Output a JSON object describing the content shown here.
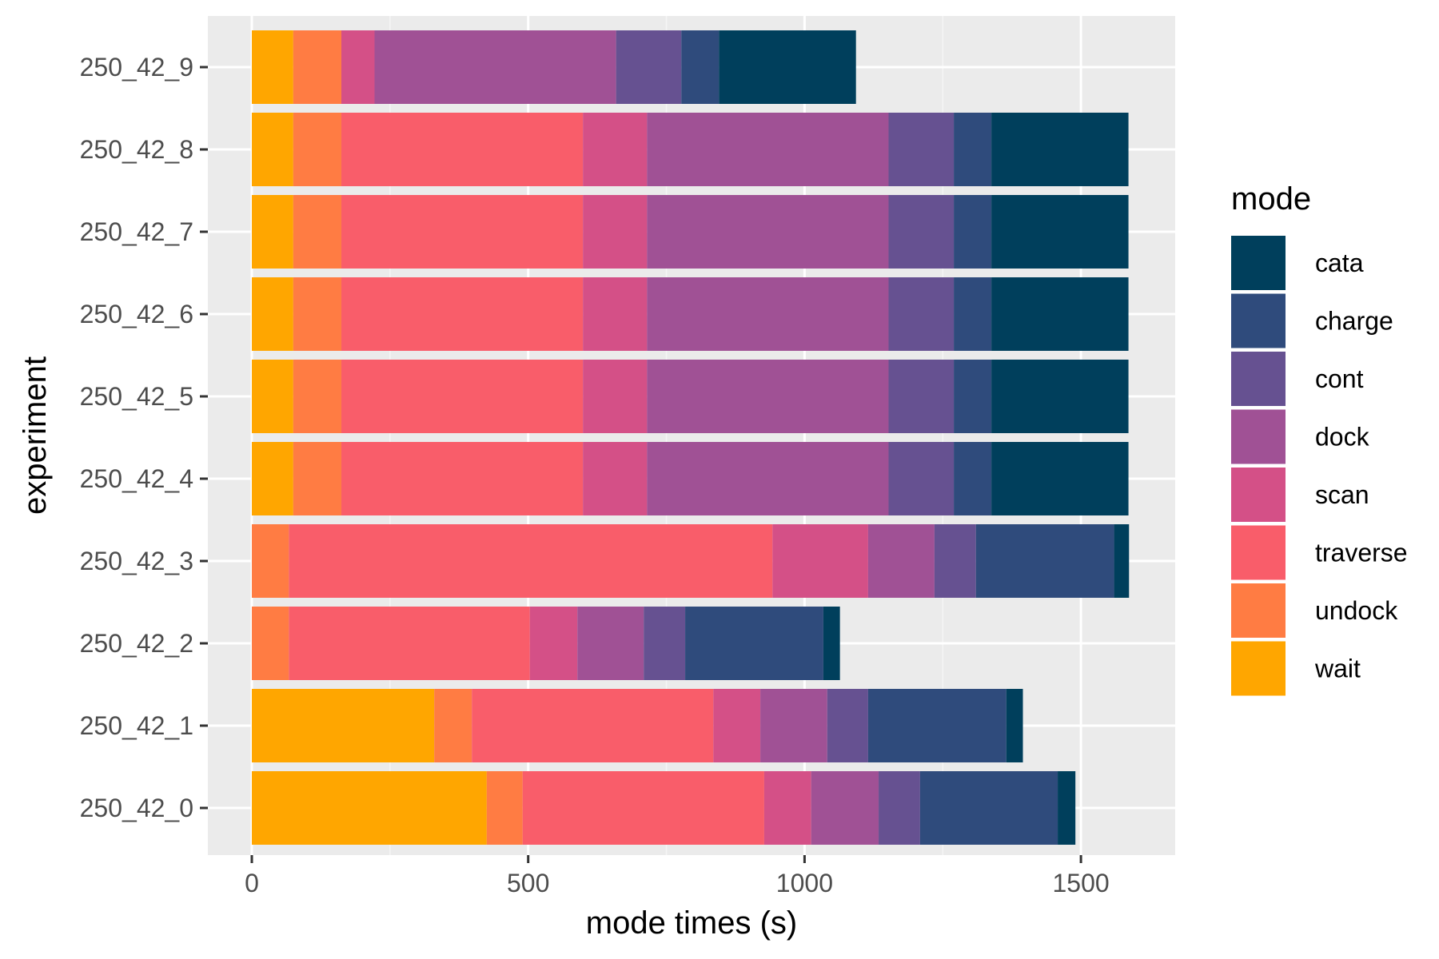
{
  "chart_data": {
    "type": "bar",
    "orientation": "horizontal",
    "stacked": true,
    "title": "",
    "xlabel": "mode times (s)",
    "ylabel": "experiment",
    "xlim": [
      0,
      1600
    ],
    "x_ticks": [
      "0",
      "500",
      "1000",
      "1500"
    ],
    "x_tick_values": [
      0,
      500,
      1000,
      1500
    ],
    "grid": true,
    "legend": {
      "title": "mode",
      "placement": "right",
      "entries": [
        "cata",
        "charge",
        "cont",
        "dock",
        "scan",
        "traverse",
        "undock",
        "wait"
      ]
    },
    "categories": [
      "250_42_0",
      "250_42_1",
      "250_42_2",
      "250_42_3",
      "250_42_4",
      "250_42_5",
      "250_42_6",
      "250_42_7",
      "250_42_8",
      "250_42_9"
    ],
    "stack_order": [
      "wait",
      "undock",
      "traverse",
      "scan",
      "dock",
      "cont",
      "charge",
      "cata"
    ],
    "series": [
      {
        "name": "wait",
        "color": "#FFA600",
        "values": [
          425,
          330,
          0,
          0,
          75,
          75,
          75,
          75,
          75,
          75
        ]
      },
      {
        "name": "undock",
        "color": "#FF7C43",
        "values": [
          65,
          68,
          67,
          67,
          87,
          87,
          87,
          87,
          87,
          87
        ]
      },
      {
        "name": "traverse",
        "color": "#F95D6A",
        "values": [
          437,
          437,
          436,
          875,
          437,
          437,
          437,
          437,
          437,
          0
        ]
      },
      {
        "name": "scan",
        "color": "#D45087",
        "values": [
          85,
          85,
          86,
          173,
          116,
          116,
          116,
          116,
          116,
          60
        ]
      },
      {
        "name": "dock",
        "color": "#A05195",
        "values": [
          122,
          121,
          120,
          120,
          437,
          437,
          437,
          437,
          437,
          437
        ]
      },
      {
        "name": "cont",
        "color": "#665191",
        "values": [
          75,
          74,
          75,
          75,
          118,
          118,
          118,
          118,
          118,
          118
        ]
      },
      {
        "name": "charge",
        "color": "#2F4B7C",
        "values": [
          249,
          250,
          250,
          250,
          68,
          68,
          68,
          68,
          68,
          68
        ]
      },
      {
        "name": "cata",
        "color": "#003F5C",
        "values": [
          32,
          30,
          30,
          27,
          248,
          248,
          248,
          248,
          248,
          248
        ]
      }
    ]
  },
  "colors": {
    "panel_background": "#EBEBEB",
    "grid_major": "#FFFFFF",
    "grid_minor": "#F5F5F5",
    "tick_text": "#4D4D4D",
    "tick_mark": "#333333"
  }
}
